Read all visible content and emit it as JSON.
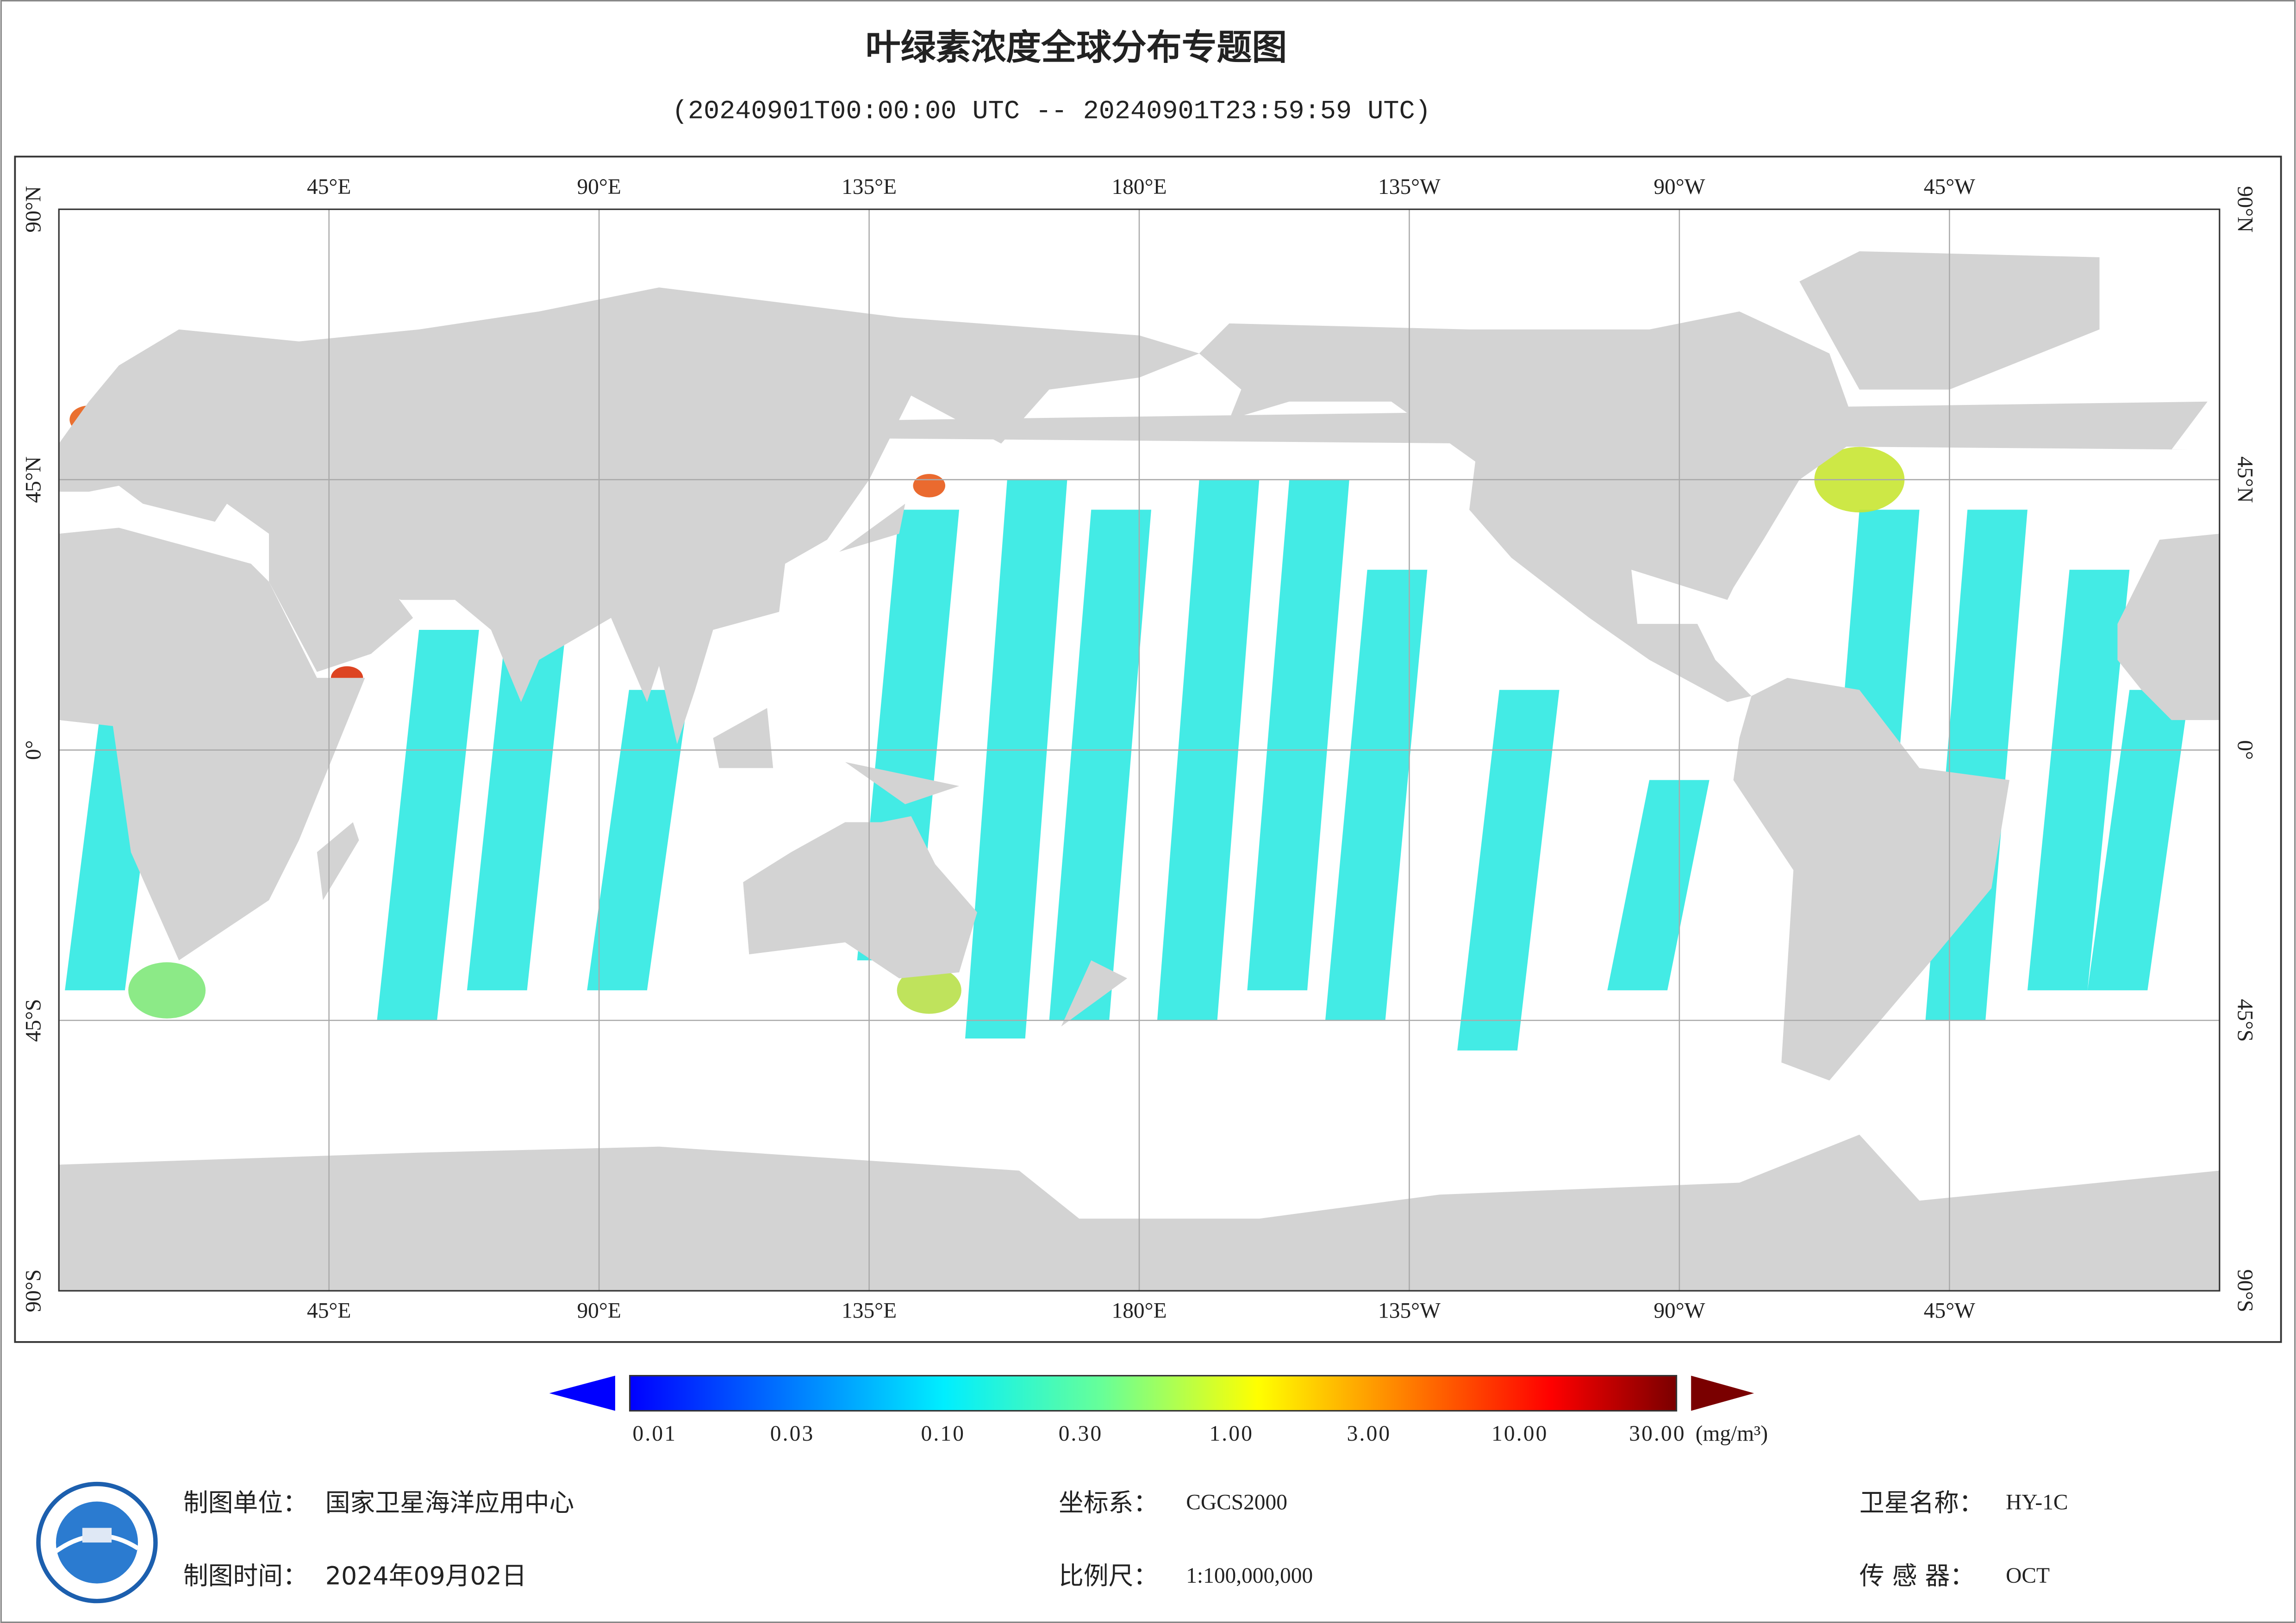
{
  "header": {
    "title": "叶绿素浓度全球分布专题图",
    "subtitle": "(20240901T00:00:00 UTC -- 20240901T23:59:59 UTC)"
  },
  "map": {
    "lon_labels": [
      "45°E",
      "90°E",
      "135°E",
      "180°E",
      "135°W",
      "90°W",
      "45°W"
    ],
    "lat_labels": [
      "90°N",
      "45°N",
      "0°",
      "45°S",
      "90°S"
    ]
  },
  "colorbar": {
    "ticks": [
      {
        "value": 0.01,
        "label": "0.01"
      },
      {
        "value": 0.03,
        "label": "0.03"
      },
      {
        "value": 0.1,
        "label": "0.10"
      },
      {
        "value": 0.3,
        "label": "0.30"
      },
      {
        "value": 1,
        "label": "1.00"
      },
      {
        "value": 3,
        "label": "3.00"
      },
      {
        "value": 10,
        "label": "10.00"
      },
      {
        "value": 30,
        "label": "30.00"
      }
    ],
    "unit": "(mg/m³)"
  },
  "footer": {
    "org_label": "制图单位：",
    "org": "国家卫星海洋应用中心",
    "date_label": "制图时间：",
    "date": "2024年09月02日",
    "crs_label": "坐标系：",
    "crs": "CGCS2000",
    "scale_label": "比例尺：",
    "scale": "1:100,000,000",
    "satellite_label": "卫星名称：",
    "satellite": "HY-1C",
    "sensor_label": "传 感 器：",
    "sensor": "OCT"
  }
}
